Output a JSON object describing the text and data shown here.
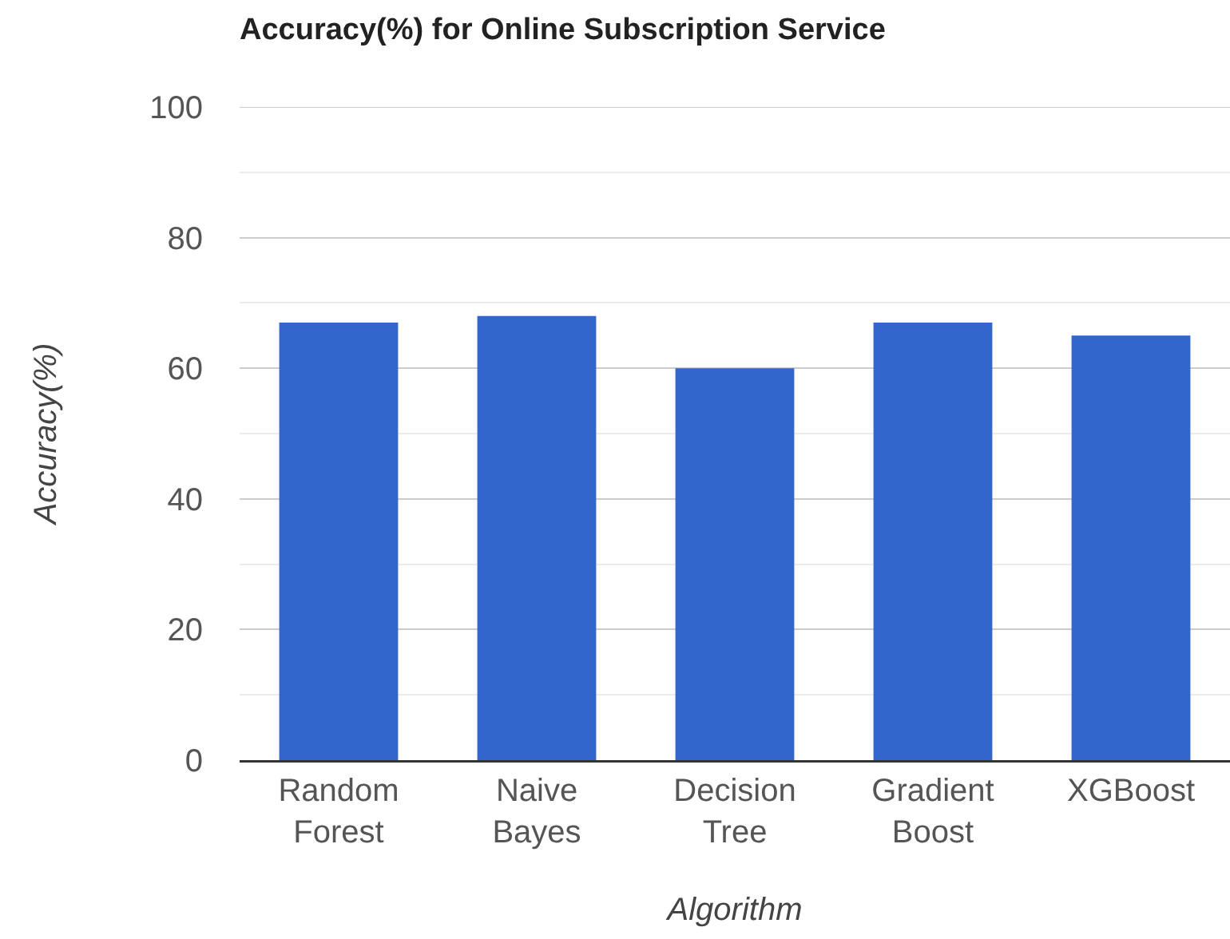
{
  "chart_data": {
    "type": "bar",
    "title": "Accuracy(%) for Online Subscription Service",
    "xlabel": "Algorithm",
    "ylabel": "Accuracy(%)",
    "categories": [
      "Random Forest",
      "Naive Bayes",
      "Decision Tree",
      "Gradient Boost",
      "XGBoost"
    ],
    "values": [
      67,
      68,
      60,
      67,
      65
    ],
    "color": "#3366cc",
    "ylim": [
      0,
      100
    ],
    "yticks": [
      0,
      {
        "value": 10,
        "label": null
      },
      20,
      {
        "value": 30,
        "label": null
      },
      40,
      {
        "value": 50,
        "label": null
      },
      60,
      {
        "value": 70,
        "label": null
      },
      80,
      {
        "value": 90,
        "label": null
      },
      100
    ],
    "grid": "y"
  }
}
